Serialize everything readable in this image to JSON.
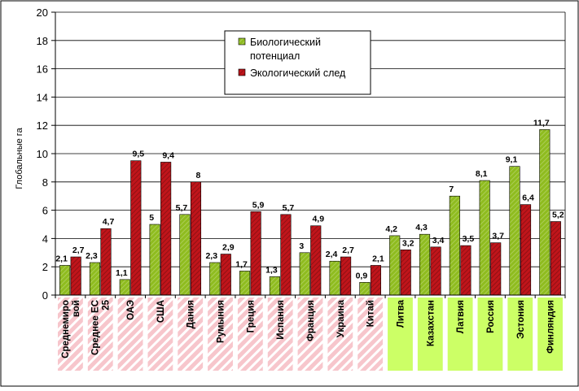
{
  "chart_data": {
    "type": "bar",
    "ylabel": "Глобальные га",
    "ylim": [
      0,
      20
    ],
    "yticks": [
      0,
      2,
      4,
      6,
      8,
      10,
      12,
      14,
      16,
      18,
      20
    ],
    "grid": true,
    "legend_position": "top-center",
    "categories": [
      {
        "lines": [
          "Среднемиро",
          "вой"
        ]
      },
      {
        "lines": [
          "Среднее ЕС",
          "25"
        ]
      },
      {
        "lines": [
          "ОАЭ"
        ]
      },
      {
        "lines": [
          "США"
        ]
      },
      {
        "lines": [
          "Дания"
        ]
      },
      {
        "lines": [
          "Румыния"
        ]
      },
      {
        "lines": [
          "Греция"
        ]
      },
      {
        "lines": [
          "Испания"
        ]
      },
      {
        "lines": [
          "Франция"
        ]
      },
      {
        "lines": [
          "Украина"
        ]
      },
      {
        "lines": [
          "Китай"
        ]
      },
      {
        "lines": [
          "Литва"
        ]
      },
      {
        "lines": [
          "Казахстан"
        ]
      },
      {
        "lines": [
          "Латвия"
        ]
      },
      {
        "lines": [
          "Россия"
        ]
      },
      {
        "lines": [
          "Эстония"
        ]
      },
      {
        "lines": [
          "Финляндия"
        ]
      }
    ],
    "category_group": [
      "deficit",
      "deficit",
      "deficit",
      "deficit",
      "deficit",
      "deficit",
      "deficit",
      "deficit",
      "deficit",
      "deficit",
      "deficit",
      "surplus",
      "surplus",
      "surplus",
      "surplus",
      "surplus",
      "surplus"
    ],
    "series": [
      {
        "name_lines": [
          "Биологический",
          "потенциал"
        ],
        "color": "#8fbc1f",
        "values": [
          2.1,
          2.3,
          1.1,
          5,
          5.7,
          2.3,
          1.7,
          1.3,
          3,
          2.4,
          0.9,
          4.2,
          4.3,
          7,
          8.1,
          9.1,
          11.7
        ],
        "labels": [
          "2,1",
          "2,3",
          "1,1",
          "5",
          "5,7",
          "2,3",
          "1,7",
          "1,3",
          "3",
          "2,4",
          "0,9",
          "4,2",
          "4,3",
          "7",
          "8,1",
          "9,1",
          "11,7"
        ]
      },
      {
        "name_lines": [
          "Экологический след"
        ],
        "color": "#c0151b",
        "values": [
          2.7,
          4.7,
          9.5,
          9.4,
          8,
          2.9,
          5.9,
          5.7,
          4.9,
          2.7,
          2.1,
          3.2,
          3.4,
          3.5,
          3.7,
          6.4,
          5.2
        ],
        "labels": [
          "2,7",
          "4,7",
          "9,5",
          "9,4",
          "8",
          "2,9",
          "5,9",
          "5,7",
          "4,9",
          "2,7",
          "2,1",
          "3,2",
          "3,4",
          "3,5",
          "3,7",
          "6,4",
          "5,2"
        ]
      }
    ]
  },
  "colors": {
    "deficit_fill": "#f7c6cc",
    "deficit_stripe": "#ffffff",
    "surplus_fill": "#ccff66",
    "grid": "#000000"
  }
}
